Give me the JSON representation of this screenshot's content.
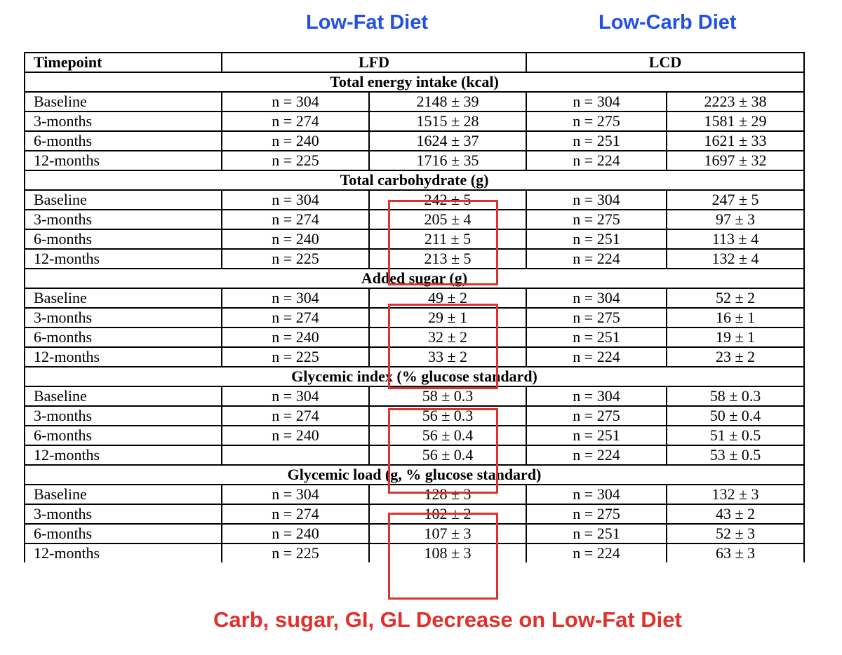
{
  "headings": {
    "lfd": "Low-Fat Diet",
    "lcd": "Low-Carb Diet"
  },
  "table": {
    "header": {
      "timepoint": "Timepoint",
      "lfd": "LFD",
      "lcd": "LCD"
    },
    "sections": [
      {
        "title": "Total energy intake (kcal)",
        "highlighted": false,
        "rows": [
          {
            "timepoint": "Baseline",
            "lfd_n": "n = 304",
            "lfd_value": "2148 ± 39",
            "lcd_n": "n = 304",
            "lcd_value": "2223 ± 38"
          },
          {
            "timepoint": "3-months",
            "lfd_n": "n = 274",
            "lfd_value": "1515 ± 28",
            "lcd_n": "n = 275",
            "lcd_value": "1581 ± 29"
          },
          {
            "timepoint": "6-months",
            "lfd_n": "n = 240",
            "lfd_value": "1624 ± 37",
            "lcd_n": "n = 251",
            "lcd_value": "1621 ± 33"
          },
          {
            "timepoint": "12-months",
            "lfd_n": "n = 225",
            "lfd_value": "1716 ± 35",
            "lcd_n": "n = 224",
            "lcd_value": "1697 ± 32"
          }
        ]
      },
      {
        "title": "Total carbohydrate (g)",
        "highlighted": true,
        "rows": [
          {
            "timepoint": "Baseline",
            "lfd_n": "n = 304",
            "lfd_value": "242 ± 5",
            "lcd_n": "n = 304",
            "lcd_value": "247 ± 5"
          },
          {
            "timepoint": "3-months",
            "lfd_n": "n = 274",
            "lfd_value": "205 ± 4",
            "lcd_n": "n = 275",
            "lcd_value": "97 ± 3"
          },
          {
            "timepoint": "6-months",
            "lfd_n": "n = 240",
            "lfd_value": "211 ± 5",
            "lcd_n": "n = 251",
            "lcd_value": "113 ± 4"
          },
          {
            "timepoint": "12-months",
            "lfd_n": "n = 225",
            "lfd_value": "213 ± 5",
            "lcd_n": "n = 224",
            "lcd_value": "132 ± 4"
          }
        ]
      },
      {
        "title": "Added sugar (g)",
        "highlighted": true,
        "rows": [
          {
            "timepoint": "Baseline",
            "lfd_n": "n = 304",
            "lfd_value": "49 ± 2",
            "lcd_n": "n = 304",
            "lcd_value": "52 ± 2"
          },
          {
            "timepoint": "3-months",
            "lfd_n": "n = 274",
            "lfd_value": "29 ± 1",
            "lcd_n": "n = 275",
            "lcd_value": "16 ± 1"
          },
          {
            "timepoint": "6-months",
            "lfd_n": "n = 240",
            "lfd_value": "32 ± 2",
            "lcd_n": "n = 251",
            "lcd_value": "19 ± 1"
          },
          {
            "timepoint": "12-months",
            "lfd_n": "n = 225",
            "lfd_value": "33 ± 2",
            "lcd_n": "n = 224",
            "lcd_value": "23 ± 2"
          }
        ]
      },
      {
        "title": "Glycemic index (% glucose standard)",
        "highlighted": true,
        "rows": [
          {
            "timepoint": "Baseline",
            "lfd_n": "n = 304",
            "lfd_value": "58 ± 0.3",
            "lcd_n": "n = 304",
            "lcd_value": "58 ± 0.3"
          },
          {
            "timepoint": "3-months",
            "lfd_n": "n = 274",
            "lfd_value": "56 ± 0.3",
            "lcd_n": "n = 275",
            "lcd_value": "50 ± 0.4"
          },
          {
            "timepoint": "6-months",
            "lfd_n": "n = 240",
            "lfd_value": "56 ± 0.4",
            "lcd_n": "n = 251",
            "lcd_value": "51 ± 0.5"
          },
          {
            "timepoint": "12-months",
            "lfd_n": "",
            "lfd_value": "56 ± 0.4",
            "lcd_n": "n = 224",
            "lcd_value": "53 ± 0.5"
          }
        ]
      },
      {
        "title": "Glycemic load (g, % glucose standard)",
        "highlighted": true,
        "rows": [
          {
            "timepoint": "Baseline",
            "lfd_n": "n = 304",
            "lfd_value": "128 ± 3",
            "lcd_n": "n = 304",
            "lcd_value": "132 ± 3"
          },
          {
            "timepoint": "3-months",
            "lfd_n": "n = 274",
            "lfd_value": "102 ± 2",
            "lcd_n": "n = 275",
            "lcd_value": "43 ± 2"
          },
          {
            "timepoint": "6-months",
            "lfd_n": "n = 240",
            "lfd_value": "107 ± 3",
            "lcd_n": "n = 251",
            "lcd_value": "52 ± 3"
          },
          {
            "timepoint": "12-months",
            "lfd_n": "n = 225",
            "lfd_value": "108 ± 3",
            "lcd_n": "n = 224",
            "lcd_value": "63 ± 3"
          }
        ]
      }
    ]
  },
  "caption": "Carb, sugar, GI, GL Decrease on Low-Fat Diet",
  "colors": {
    "heading": "#2150e6",
    "highlight": "#e0312c",
    "caption": "#e0312c"
  }
}
